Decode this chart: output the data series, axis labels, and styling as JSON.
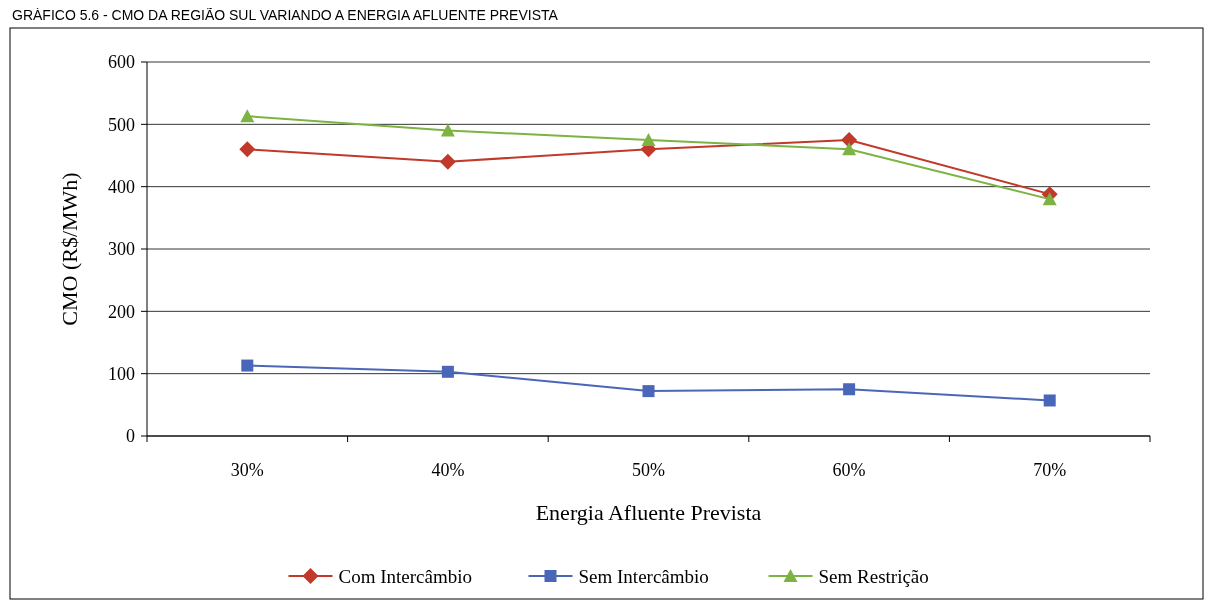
{
  "chart_data": {
    "type": "line",
    "title": "GRÁFICO 5.6 - CMO DA REGIÃO SUL VARIANDO A ENERGIA AFLUENTE PREVISTA",
    "xlabel": "Energia Afluente Prevista",
    "ylabel": "CMO (R$/MWh)",
    "categories": [
      "30%",
      "40%",
      "50%",
      "60%",
      "70%"
    ],
    "series": [
      {
        "name": "Com Intercâmbio",
        "color": "#c0392b",
        "marker": "diamond",
        "values": [
          460,
          440,
          460,
          475,
          388
        ]
      },
      {
        "name": "Sem Intercâmbio",
        "color": "#4a66b8",
        "marker": "square",
        "values": [
          113,
          103,
          72,
          75,
          57
        ]
      },
      {
        "name": "Sem Restrição",
        "color": "#7cb342",
        "marker": "triangle",
        "values": [
          513,
          490,
          475,
          460,
          380
        ]
      }
    ],
    "ylim": [
      0,
      600
    ],
    "yticks": [
      0,
      100,
      200,
      300,
      400,
      500,
      600
    ],
    "grid": "y",
    "legend": "bottom"
  }
}
